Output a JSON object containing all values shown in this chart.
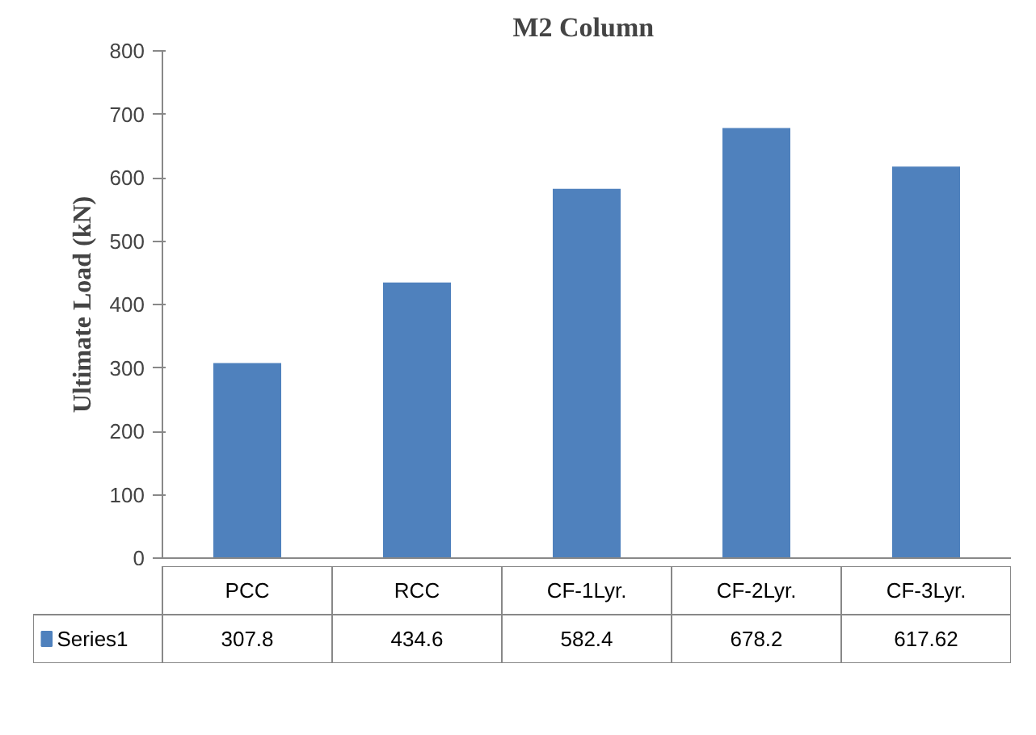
{
  "chart_data": {
    "type": "bar",
    "title": "M2  Column",
    "ylabel": "Ultimate Load (kN)",
    "categories": [
      "PCC",
      "RCC",
      "CF-1Lyr.",
      "CF-2Lyr.",
      "CF-3Lyr."
    ],
    "series": [
      {
        "name": "Series1",
        "color": "#4f81bd",
        "values": [
          307.8,
          434.6,
          582.4,
          678.2,
          617.62
        ]
      }
    ],
    "ylim": [
      0,
      800
    ],
    "yticks": [
      0,
      100,
      200,
      300,
      400,
      500,
      600,
      700,
      800
    ],
    "data_labels": true,
    "legend": "bottom"
  }
}
